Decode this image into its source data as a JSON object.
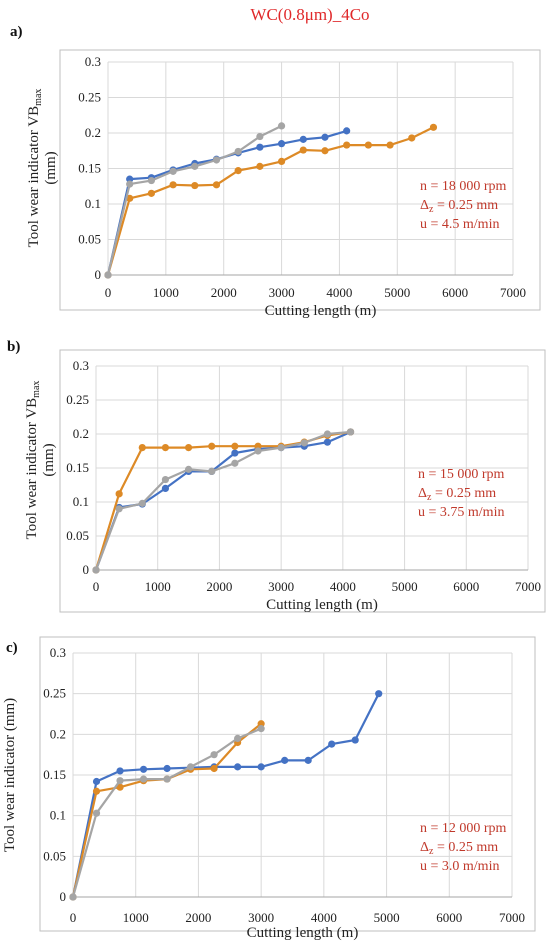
{
  "figure_title": "WC(0.8μm)_4Co",
  "colors": {
    "title": "#e0282a",
    "params": "#c0392b",
    "series": [
      "#4472c4",
      "#dd8a26",
      "#a5a5a5"
    ],
    "grid": "#d9d9d9",
    "frame": "#bfbfbf"
  },
  "chart_data": [
    {
      "type": "line",
      "panel_label": "a)",
      "xlabel": "Cutting length (m)",
      "ylabel": "Tool wear indicator VB",
      "ylabel_sub": "max",
      "ylabel_unit": "(mm)",
      "xlim": [
        0,
        7000
      ],
      "ylim": [
        0,
        0.3
      ],
      "xticks": [
        0,
        1000,
        2000,
        3000,
        4000,
        5000,
        6000,
        7000
      ],
      "yticks": [
        0,
        0.05,
        0.1,
        0.15,
        0.2,
        0.25,
        0.3
      ],
      "params": {
        "n": "n = 18 000 rpm",
        "dz_prefix": "Δ",
        "dz_sub": "z",
        "dz_value": " = 0.25 mm",
        "u": "u = 4.5 m/min"
      },
      "series": [
        {
          "x": [
            0,
            375,
            750,
            1125,
            1500,
            1875,
            2250,
            2625,
            3000,
            3375,
            3750,
            4125
          ],
          "y": [
            0,
            0.135,
            0.137,
            0.148,
            0.157,
            0.163,
            0.172,
            0.18,
            0.185,
            0.191,
            0.194,
            0.203
          ]
        },
        {
          "x": [
            0,
            375,
            750,
            1125,
            1500,
            1875,
            2250,
            2625,
            3000,
            3375,
            3750,
            4125,
            4500,
            4875,
            5250,
            5625
          ],
          "y": [
            0,
            0.108,
            0.115,
            0.127,
            0.126,
            0.127,
            0.147,
            0.153,
            0.16,
            0.176,
            0.175,
            0.183,
            0.183,
            0.183,
            0.193,
            0.208
          ]
        },
        {
          "x": [
            0,
            375,
            750,
            1125,
            1500,
            1875,
            2250,
            2625,
            3000
          ],
          "y": [
            0,
            0.128,
            0.133,
            0.146,
            0.153,
            0.162,
            0.174,
            0.195,
            0.21
          ]
        }
      ]
    },
    {
      "type": "line",
      "panel_label": "b)",
      "xlabel": "Cutting length (m)",
      "ylabel": "Tool wear indicator VB",
      "ylabel_sub": "max",
      "ylabel_unit": "(mm)",
      "xlim": [
        0,
        7000
      ],
      "ylim": [
        0,
        0.3
      ],
      "xticks": [
        0,
        1000,
        2000,
        3000,
        4000,
        5000,
        6000,
        7000
      ],
      "yticks": [
        0,
        0.05,
        0.1,
        0.15,
        0.2,
        0.25,
        0.3
      ],
      "params": {
        "n": "n = 15 000 rpm",
        "dz_prefix": "Δ",
        "dz_sub": "z",
        "dz_value": " = 0.25 mm",
        "u": "u = 3.75 m/min"
      },
      "series": [
        {
          "x": [
            0,
            375,
            750,
            1125,
            1500,
            1875,
            2250,
            2625,
            3000,
            3375,
            3750,
            4125
          ],
          "y": [
            0,
            0.092,
            0.097,
            0.12,
            0.145,
            0.145,
            0.172,
            0.178,
            0.18,
            0.182,
            0.188,
            0.203
          ]
        },
        {
          "x": [
            0,
            375,
            750,
            1125,
            1500,
            1875,
            2250,
            2625,
            3000,
            3375,
            3750,
            4125
          ],
          "y": [
            0,
            0.112,
            0.18,
            0.18,
            0.18,
            0.182,
            0.182,
            0.182,
            0.182,
            0.188,
            0.198,
            0.203
          ]
        },
        {
          "x": [
            0,
            375,
            750,
            1125,
            1500,
            1875,
            2250,
            2625,
            3000,
            3375,
            3750,
            4125
          ],
          "y": [
            0,
            0.09,
            0.098,
            0.133,
            0.148,
            0.145,
            0.157,
            0.175,
            0.18,
            0.187,
            0.2,
            0.203
          ]
        }
      ]
    },
    {
      "type": "line",
      "panel_label": "c)",
      "xlabel": "Cutting length (m)",
      "ylabel": "Tool wear indicator (mm)",
      "ylabel_sub": "",
      "ylabel_unit": "",
      "xlim": [
        0,
        7000
      ],
      "ylim": [
        0,
        0.3
      ],
      "xticks": [
        0,
        1000,
        2000,
        3000,
        4000,
        5000,
        6000,
        7000
      ],
      "yticks": [
        0,
        0.05,
        0.1,
        0.15,
        0.2,
        0.25,
        0.3
      ],
      "params": {
        "n": "n = 12 000 rpm",
        "dz_prefix": "Δ",
        "dz_sub": "z",
        "dz_value": " = 0.25 mm",
        "u": "u = 3.0 m/min"
      },
      "series": [
        {
          "x": [
            0,
            375,
            750,
            1125,
            1500,
            1875,
            2250,
            2625,
            3000,
            3375,
            3750,
            4125,
            4500,
            4875
          ],
          "y": [
            0,
            0.142,
            0.155,
            0.157,
            0.158,
            0.159,
            0.16,
            0.16,
            0.16,
            0.168,
            0.168,
            0.188,
            0.193,
            0.25
          ]
        },
        {
          "x": [
            0,
            375,
            750,
            1125,
            1500,
            1875,
            2250,
            2625,
            3000
          ],
          "y": [
            0,
            0.13,
            0.135,
            0.143,
            0.145,
            0.157,
            0.158,
            0.19,
            0.213
          ]
        },
        {
          "x": [
            0,
            375,
            750,
            1125,
            1500,
            1875,
            2250,
            2625,
            3000
          ],
          "y": [
            0,
            0.103,
            0.143,
            0.145,
            0.145,
            0.16,
            0.175,
            0.195,
            0.207
          ]
        }
      ]
    }
  ]
}
